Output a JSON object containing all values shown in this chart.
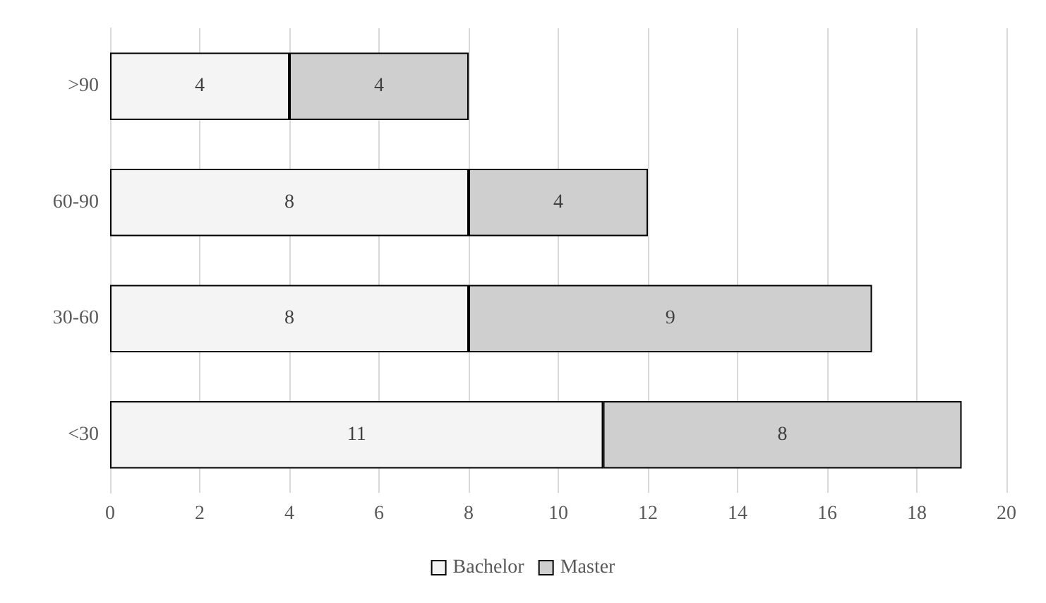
{
  "chart_data": {
    "type": "bar",
    "orientation": "horizontal",
    "stacked": true,
    "categories": [
      ">90",
      "60-90",
      "30-60",
      "<30"
    ],
    "series": [
      {
        "name": "Bachelor",
        "color": "#f4f4f4",
        "values": [
          4,
          8,
          8,
          11
        ]
      },
      {
        "name": "Master",
        "color": "#cfcfcf",
        "values": [
          4,
          4,
          9,
          8
        ]
      }
    ],
    "xlim": [
      0,
      20
    ],
    "xticks": [
      0,
      2,
      4,
      6,
      8,
      10,
      12,
      14,
      16,
      18,
      20
    ],
    "grid": "x",
    "legend": "bottom",
    "data_labels": true
  }
}
